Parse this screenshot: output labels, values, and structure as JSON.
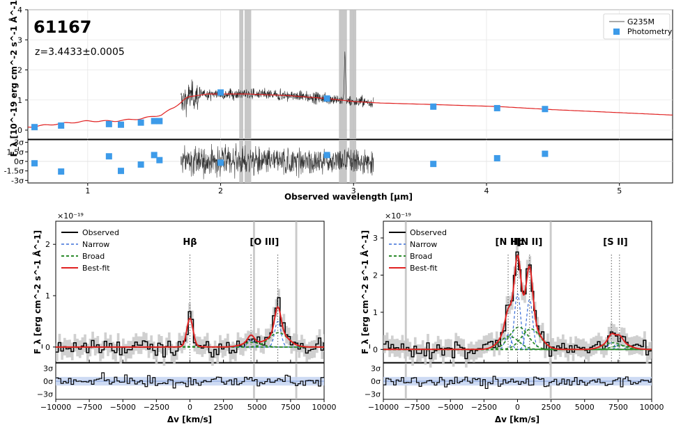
{
  "chart_data": [
    {
      "type": "line",
      "title": "61167",
      "subtitle": "z=3.4433±0.0005",
      "xlabel": "Observed wavelength [μm]",
      "ylabel": "F_λ [10^-19 erg cm^-2 s^-1 Å^-1]",
      "xlim": [
        0.55,
        5.4
      ],
      "ylim": [
        -0.3,
        4
      ],
      "xticks": [
        "1",
        "2",
        "3",
        "4",
        "5"
      ],
      "yticks": [
        "0",
        "1",
        "2",
        "3",
        "4"
      ],
      "legend": [
        "G235M",
        "Photometry"
      ],
      "legend_position": "top-right",
      "spectrum_range_um": [
        1.7,
        3.15
      ],
      "masked_regions_um": [
        [
          2.14,
          2.17
        ],
        [
          2.18,
          2.23
        ],
        [
          2.89,
          2.95
        ],
        [
          2.97,
          3.02
        ]
      ],
      "model_curve": {
        "x": [
          0.55,
          0.8,
          1.0,
          1.2,
          1.4,
          1.55,
          1.65,
          1.75,
          1.9,
          2.0,
          2.2,
          2.5,
          2.8,
          3.0,
          3.2,
          3.6,
          4.1,
          4.5,
          5.0,
          5.4
        ],
        "y": [
          0.1,
          0.22,
          0.3,
          0.3,
          0.38,
          0.5,
          0.75,
          1.1,
          1.2,
          1.2,
          1.2,
          1.15,
          1.05,
          0.95,
          0.9,
          0.85,
          0.78,
          0.68,
          0.58,
          0.5
        ]
      },
      "photometry": {
        "x": [
          0.6,
          0.8,
          1.16,
          1.25,
          1.4,
          1.5,
          1.54,
          2.0,
          2.8,
          3.6,
          4.08,
          4.44
        ],
        "y": [
          0.1,
          0.15,
          0.2,
          0.18,
          0.25,
          0.3,
          0.3,
          1.25,
          1.05,
          0.78,
          0.73,
          0.7
        ],
        "resid_sigma": [
          -0.3,
          -1.6,
          0.8,
          -1.5,
          -0.5,
          1.0,
          0.2,
          -0.2,
          1.0,
          -0.4,
          0.5,
          1.2
        ]
      },
      "residual_yticks": [
        "3σ",
        "1.5σ",
        "0σ",
        "-1.5σ",
        "-3σ"
      ]
    },
    {
      "type": "line",
      "scale_label": "×10⁻¹⁹",
      "xlabel": "Δv [km/s]",
      "ylabel": "F_λ [erg cm^-2 s^-1 Å^-1]",
      "xlim": [
        -10000,
        10000
      ],
      "ylim": [
        -0.3,
        2.45
      ],
      "xticks": [
        "−10000",
        "−7500",
        "−5000",
        "−2500",
        "0",
        "2500",
        "5000",
        "7500",
        "10000"
      ],
      "yticks": [
        "0",
        "1",
        "2"
      ],
      "legend": [
        "Observed",
        "Narrow",
        "Broad",
        "Best-fit"
      ],
      "legend_position": "top-left",
      "lines": [
        {
          "label": "Hβ",
          "v": [
            0
          ]
        },
        {
          "label": "[O III]",
          "v": [
            4550,
            6550
          ]
        }
      ],
      "masked_regions_kms": [
        [
          4700,
          4850
        ],
        [
          7850,
          8000
        ]
      ],
      "narrow_components": [
        {
          "v": 0,
          "amp": 0.55
        },
        {
          "v": 4550,
          "amp": 0.14
        },
        {
          "v": 6550,
          "amp": 0.5
        }
      ],
      "broad_components": [
        {
          "v": 200,
          "amp": 0.01
        },
        {
          "v": 4600,
          "amp": 0.09
        },
        {
          "v": 6600,
          "amp": 0.28
        }
      ],
      "residual_yticks": [
        "3σ",
        "0σ",
        "−3σ"
      ]
    },
    {
      "type": "line",
      "scale_label": "×10⁻¹⁹",
      "xlabel": "Δv [km/s]",
      "ylabel": "F_λ [erg cm^-2 s^-1 Å^-1]",
      "xlim": [
        -10000,
        10000
      ],
      "ylim": [
        -0.35,
        3.45
      ],
      "xticks": [
        "−10000",
        "−7500",
        "−5000",
        "−2500",
        "0",
        "2500",
        "5000",
        "7500",
        "10000"
      ],
      "yticks": [
        "0",
        "1",
        "2",
        "3"
      ],
      "legend": [
        "Observed",
        "Narrow",
        "Broad",
        "Best-fit"
      ],
      "legend_position": "top-left",
      "lines": [
        {
          "label": "[N II]",
          "v": [
            -700
          ]
        },
        {
          "label": "Hα",
          "v": [
            0
          ]
        },
        {
          "label": "[N II]",
          "v": [
            900
          ]
        },
        {
          "label": "[S II]",
          "v": [
            7000,
            7600
          ]
        }
      ],
      "masked_regions_kms": [
        [
          -8400,
          -8250
        ],
        [
          2400,
          2550
        ]
      ],
      "narrow_components": [
        {
          "v": -700,
          "amp": 0.4
        },
        {
          "v": 0,
          "amp": 1.5
        },
        {
          "v": 900,
          "amp": 1.35
        },
        {
          "v": 7000,
          "amp": 0.18
        },
        {
          "v": 7600,
          "amp": 0.14
        }
      ],
      "broad_components": [
        {
          "v": -600,
          "amp": 0.35
        },
        {
          "v": 100,
          "amp": 0.6
        },
        {
          "v": 1000,
          "amp": 0.55
        },
        {
          "v": 7100,
          "amp": 0.18
        },
        {
          "v": 7700,
          "amp": 0.1
        }
      ],
      "residual_yticks": [
        "3σ",
        "0σ",
        "−3σ"
      ]
    }
  ],
  "colors": {
    "observed": "#000000",
    "narrow": "#3a6fd8",
    "broad": "#2a8a2a",
    "bestfit": "#e02020",
    "photometry": "#3d9be9",
    "mask": "#bdbdbd",
    "resid_band": "#c8d6f2"
  }
}
